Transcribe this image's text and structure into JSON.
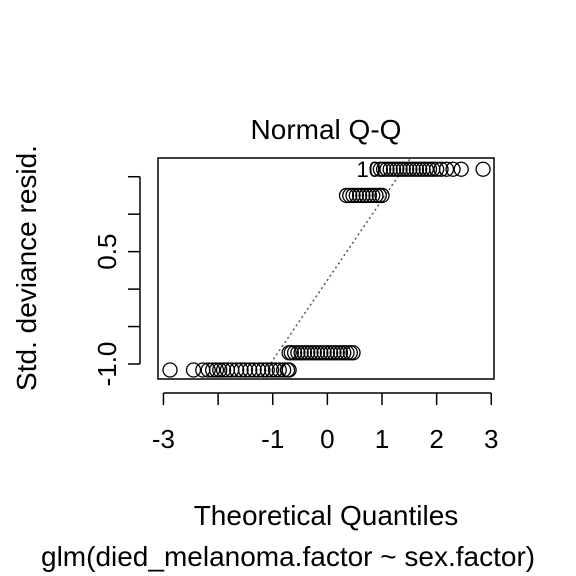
{
  "chart_data": {
    "type": "scatter",
    "title": "Normal Q-Q",
    "xlabel": "Theoretical Quantiles",
    "ylabel": "Std. deviance resid.",
    "subtitle": "glm(died_melanoma.factor ~ sex.factor)",
    "xlim": [
      -3.1,
      3.05
    ],
    "ylim": [
      -1.2,
      1.75
    ],
    "x_ticks": [
      -3,
      -2,
      -1,
      0,
      1,
      2,
      3
    ],
    "x_tick_labels": [
      "-3",
      "",
      "-1",
      "0",
      "1",
      "2",
      "3"
    ],
    "y_ticks": [
      -1.0,
      -0.5,
      0.0,
      0.5,
      1.0,
      1.5
    ],
    "y_tick_labels": [
      "-1.0",
      "",
      "",
      "0.5",
      "",
      ""
    ],
    "reference_line": {
      "style": "dotted",
      "slope": 1.07,
      "intercept": 0.12
    },
    "point_label": {
      "text": "10",
      "x": 1.2,
      "y": 1.6
    },
    "groups": [
      {
        "name": "",
        "y": -1.08,
        "x": [
          -2.88,
          -2.45,
          -2.28,
          -2.18,
          -2.1,
          -2.03,
          -1.97,
          -1.9,
          -1.83,
          -1.75,
          -1.66,
          -1.58,
          -1.5,
          -1.42,
          -1.34,
          -1.26,
          -1.18,
          -1.1,
          -1.02,
          -0.95,
          -0.88,
          -0.8,
          -0.73,
          -0.7
        ]
      },
      {
        "name": "",
        "y": -0.85,
        "x": [
          -0.7,
          -0.66,
          -0.6,
          -0.54,
          -0.48,
          -0.42,
          -0.36,
          -0.3,
          -0.24,
          -0.18,
          -0.12,
          -0.06,
          0.0,
          0.06,
          0.12,
          0.18,
          0.24,
          0.3,
          0.36,
          0.42,
          0.47
        ]
      },
      {
        "name": "",
        "y": 1.25,
        "x": [
          0.35,
          0.41,
          0.47,
          0.53,
          0.59,
          0.65,
          0.71,
          0.77,
          0.83,
          0.89,
          0.95,
          1.0
        ]
      },
      {
        "name": "",
        "y": 1.6,
        "x": [
          0.97,
          1.03,
          1.09,
          1.15,
          1.21,
          1.27,
          1.33,
          1.39,
          1.45,
          1.51,
          1.57,
          1.63,
          1.69,
          1.75,
          1.81,
          1.87,
          1.93,
          2.0,
          2.08,
          2.18,
          2.3,
          2.45,
          2.85
        ]
      }
    ]
  }
}
